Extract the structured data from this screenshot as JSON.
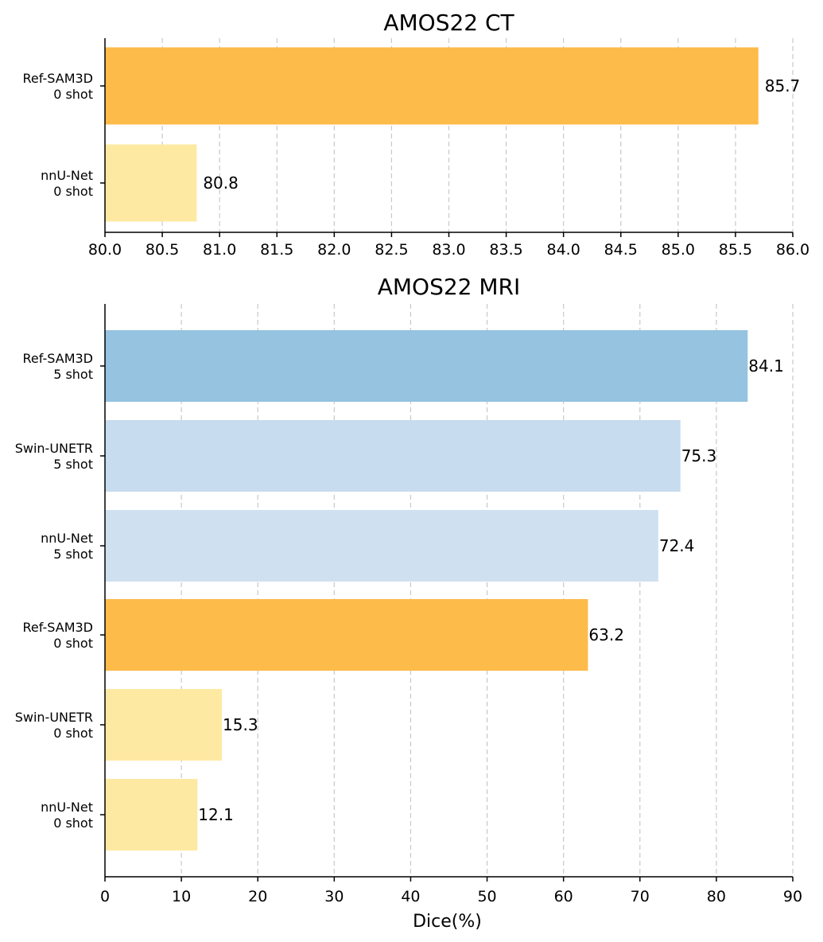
{
  "chart_data": [
    {
      "type": "bar",
      "orientation": "horizontal",
      "title": "AMOS22 CT",
      "xlabel": "",
      "ylabel": "",
      "xlim": [
        80.0,
        86.0
      ],
      "xticks": [
        "80.0",
        "80.5",
        "81.0",
        "81.5",
        "82.0",
        "82.5",
        "83.0",
        "83.5",
        "84.0",
        "84.5",
        "85.0",
        "85.5",
        "86.0"
      ],
      "grid": "vertical dashed",
      "bars": [
        {
          "model": "Ref-SAM3D",
          "setting": "0 shot",
          "value": 85.7,
          "label": "85.7",
          "color": "#FDBB4A"
        },
        {
          "model": "nnU-Net",
          "setting": "0 shot",
          "value": 80.8,
          "label": "80.8",
          "color": "#FDE9A2"
        }
      ]
    },
    {
      "type": "bar",
      "orientation": "horizontal",
      "title": "AMOS22 MRI",
      "xlabel": "Dice(%)",
      "ylabel": "",
      "xlim": [
        0,
        90
      ],
      "xticks": [
        "0",
        "10",
        "20",
        "30",
        "40",
        "50",
        "60",
        "70",
        "80",
        "90"
      ],
      "grid": "vertical dashed",
      "bars": [
        {
          "model": "Ref-SAM3D",
          "setting": "5 shot",
          "value": 84.1,
          "label": "84.1",
          "color": "#95C3E0"
        },
        {
          "model": "Swin-UNETR",
          "setting": "5 shot",
          "value": 75.3,
          "label": "75.3",
          "color": "#C7DCEE"
        },
        {
          "model": "nnU-Net",
          "setting": "5 shot",
          "value": 72.4,
          "label": "72.4",
          "color": "#CFE0F0"
        },
        {
          "model": "Ref-SAM3D",
          "setting": "0 shot",
          "value": 63.2,
          "label": "63.2",
          "color": "#FDBB4A"
        },
        {
          "model": "Swin-UNETR",
          "setting": "0 shot",
          "value": 15.3,
          "label": "15.3",
          "color": "#FDE9A2"
        },
        {
          "model": "nnU-Net",
          "setting": "0 shot",
          "value": 12.1,
          "label": "12.1",
          "color": "#FDE9A2"
        }
      ]
    }
  ]
}
